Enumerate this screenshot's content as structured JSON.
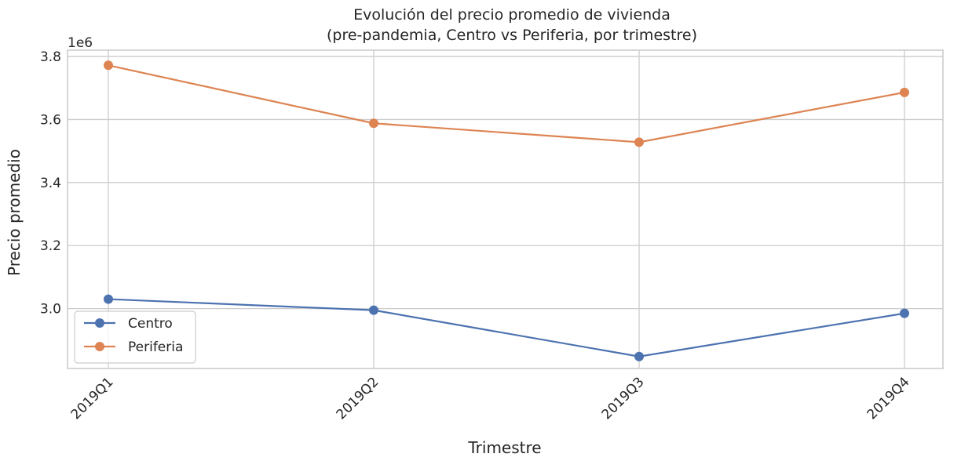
{
  "chart_data": {
    "type": "line",
    "title": [
      "Evolución del precio promedio de vivienda",
      "(pre-pandemia, Centro vs Periferia, por trimestre)"
    ],
    "xlabel": "Trimestre",
    "ylabel": "Precio promedio",
    "y_offset_label": "1e6",
    "categories": [
      "2019Q1",
      "2019Q2",
      "2019Q3",
      "2019Q4"
    ],
    "ylim": [
      2.81,
      3.82
    ],
    "y_ticks": [
      3.0,
      3.2,
      3.4,
      3.6,
      3.8
    ],
    "y_tick_labels": [
      "3.0",
      "3.2",
      "3.4",
      "3.6",
      "3.8"
    ],
    "series": [
      {
        "name": "Centro",
        "color": "#4c72b0",
        "marker": "circle",
        "values": [
          3.03,
          2.995,
          2.848,
          2.985
        ]
      },
      {
        "name": "Periferia",
        "color": "#dd8452",
        "marker": "circle",
        "values": [
          3.772,
          3.588,
          3.528,
          3.686
        ]
      }
    ],
    "grid": true,
    "legend_position": "lower-left"
  }
}
